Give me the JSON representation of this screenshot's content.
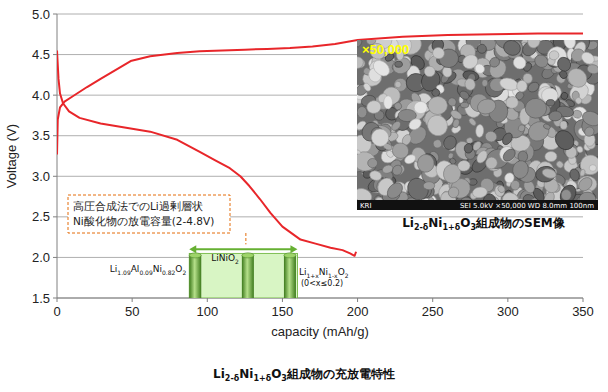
{
  "chart_data": {
    "type": "line",
    "title": "Li2-δNi1+δO3組成物の充放電特性",
    "x_label": "capacity (mAh/g)",
    "y_label": "Voltage (V)",
    "xlim": [
      0,
      350
    ],
    "ylim": [
      1.5,
      5.0
    ],
    "xticks": [
      0,
      50,
      100,
      150,
      200,
      250,
      300,
      350
    ],
    "yticks": [
      1.5,
      {
        "value": 2,
        "label": "2.0"
      },
      2.5,
      {
        "value": 3,
        "label": "3.0"
      },
      3.5,
      {
        "value": 4,
        "label": "4.0"
      },
      4.5,
      {
        "value": 5,
        "label": "5.0"
      }
    ],
    "grid": true,
    "series": [
      {
        "color": "#e8262a",
        "line_style": "solid",
        "x": [
          0,
          0.5,
          2,
          5,
          10,
          20,
          29,
          40,
          49,
          62,
          80,
          95,
          110,
          125,
          140,
          155,
          170,
          185,
          200,
          230,
          260,
          290,
          320,
          350
        ],
        "values": [
          3.27,
          3.7,
          3.85,
          3.92,
          3.98,
          4.1,
          4.2,
          4.32,
          4.42,
          4.48,
          4.52,
          4.54,
          4.55,
          4.56,
          4.57,
          4.58,
          4.6,
          4.63,
          4.68,
          4.72,
          4.74,
          4.75,
          4.76,
          4.76
        ]
      },
      {
        "color": "#e8262a",
        "line_style": "solid",
        "x": [
          0,
          1,
          2,
          4,
          8,
          15,
          29,
          45,
          62,
          80,
          95,
          105,
          115,
          122,
          128,
          135,
          142,
          150,
          162,
          172,
          182,
          190,
          195,
          198,
          199
        ],
        "values": [
          4.55,
          4.2,
          4.02,
          3.9,
          3.8,
          3.72,
          3.65,
          3.6,
          3.55,
          3.45,
          3.3,
          3.2,
          3.1,
          3.0,
          2.88,
          2.72,
          2.55,
          2.38,
          2.22,
          2.17,
          2.12,
          2.09,
          2.05,
          2.02,
          2.07
        ]
      }
    ],
    "annotation": {
      "lines": [
        "高圧合成法でのLi過剰層状",
        "Ni酸化物の放電容量(2-4.8V)"
      ],
      "color": "#e46c0a"
    },
    "reference_band": {
      "x": [
        88,
        160
      ],
      "y": [
        1.5,
        2.05
      ],
      "color": "#66b032",
      "items": [
        {
          "label": "Li1.09Al0.09Ni0.82O2",
          "x": 92
        },
        {
          "label": "LiNiO2",
          "x": 127
        },
        {
          "label": "Li1+xNi1-xO2",
          "sublabel": "(0<x≤0.2)",
          "x": 155
        }
      ]
    },
    "inset": {
      "magnification": "×50,000",
      "logo": "KRI",
      "footer": "SEI   5.0kV   ×50,000   WD 8.0mm   100nm",
      "caption": "Li2-δNi1+δO3組成物のSEM像"
    }
  }
}
